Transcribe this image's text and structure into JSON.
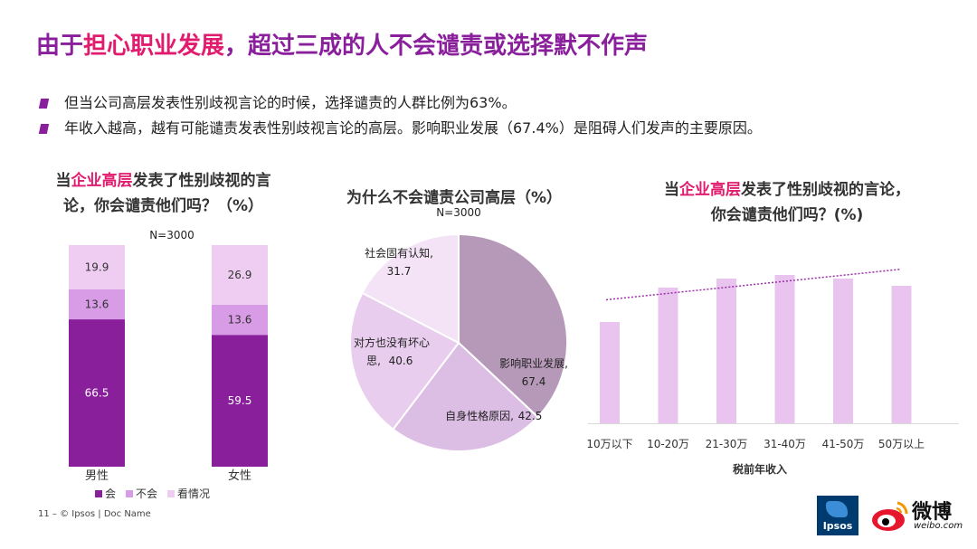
{
  "headline": {
    "part1": "由于",
    "highlight": "担心职业发展",
    "part2": "，超过三成的人不会谴责或选择默不作声"
  },
  "bullets": [
    "但当公司高层发表性别歧视言论的时候，选择谴责的人群比例为63%。",
    "年收入越高，越有可能谴责发表性别歧视言论的高层。影响职业发展（67.4%）是阻碍人们发声的主要原因。"
  ],
  "chart1_title": {
    "p1": "当",
    "hl": "企业高层",
    "p2": "发表了性别歧视的言",
    "line2": "论，你会谴责他们吗？（%）"
  },
  "chart2_title": {
    "line1": "为什么不会谴责公司高层（%）"
  },
  "chart3_title": {
    "p1": "当",
    "hl": "企业高层",
    "p2": "发表了性别歧视的言论，",
    "line2": "你会谴责他们吗？(%)"
  },
  "footer": "11 –  © Ipsos | Doc Name",
  "logos": {
    "ipsos": "Ipsos",
    "weibo": "微博",
    "weibo_url": "weibo.com"
  },
  "colors": {
    "dark_purple": "#8a1f9c",
    "mid_purple": "#d89be6",
    "light_purple": "#efcdf2",
    "pie_main": "#b699b8",
    "pink_bar": "#e8c4ee"
  },
  "chart_data": [
    {
      "type": "bar",
      "stacked": true,
      "note": "N=3000",
      "categories": [
        "男性",
        "女性"
      ],
      "series": [
        {
          "name": "会",
          "values": [
            66.5,
            59.5
          ],
          "color": "#8a1f9c"
        },
        {
          "name": "不会",
          "values": [
            13.6,
            13.6
          ],
          "color": "#d89be6"
        },
        {
          "name": "看情况",
          "values": [
            19.9,
            26.9
          ],
          "color": "#efcdf2"
        }
      ],
      "legend": "bottom"
    },
    {
      "type": "pie",
      "note": "N=3000",
      "slices": [
        {
          "label": "影响职业发展,",
          "value_label": "67.4",
          "value": 67.4,
          "color": "#b699b8"
        },
        {
          "label": "自身性格原因,",
          "value_label": "42.5",
          "value": 42.5,
          "color": "#dcbde4"
        },
        {
          "label": "对方也没有坏心",
          "label2": "思,",
          "value_label": "40.6",
          "value": 40.6,
          "color": "#e8cdee"
        },
        {
          "label": "社会固有认知,",
          "value_label": "31.7",
          "value": 31.7,
          "color": "#f4e3f6"
        }
      ]
    },
    {
      "type": "bar",
      "categories": [
        "10万以下",
        "10-20万",
        "21-30万",
        "31-40万",
        "41-50万",
        "50万以上"
      ],
      "values": [
        56,
        75,
        80,
        82,
        80,
        76
      ],
      "xlabel": "税前年收入",
      "trendline": true,
      "grid": false
    }
  ]
}
